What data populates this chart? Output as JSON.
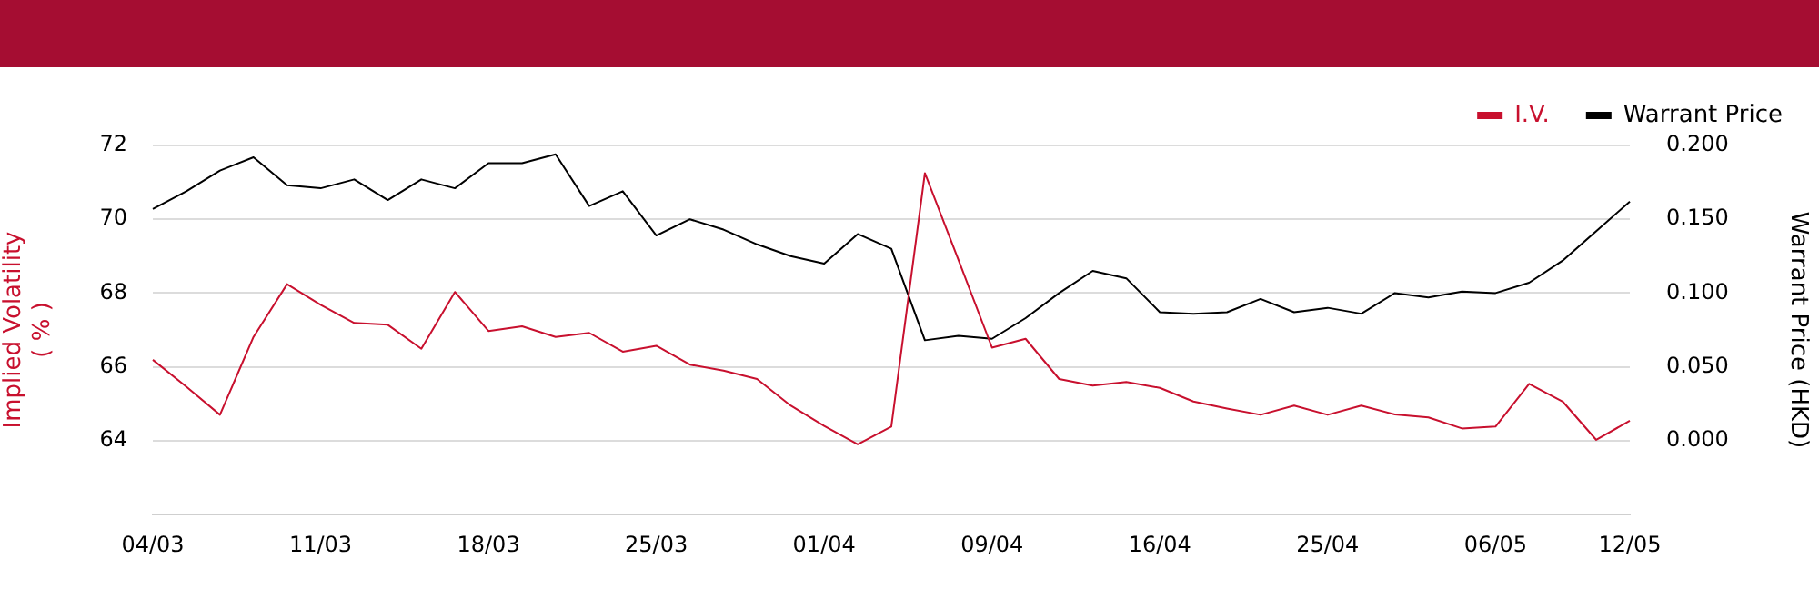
{
  "chart_data": {
    "type": "line",
    "xlabel": null,
    "ylabel": "Implied Volatility\n( % )",
    "y2label": "Warrant Price (HKD)",
    "categories": [
      "04/03",
      null,
      null,
      null,
      null,
      "11/03",
      null,
      null,
      null,
      null,
      "18/03",
      null,
      null,
      null,
      null,
      "25/03",
      null,
      null,
      null,
      null,
      "01/04",
      null,
      null,
      null,
      null,
      "09/04",
      null,
      null,
      null,
      null,
      "16/04",
      null,
      null,
      null,
      null,
      "25/04",
      null,
      null,
      null,
      null,
      "06/05",
      null,
      null,
      null,
      "12/05"
    ],
    "series": [
      {
        "name": "I.V.",
        "color": "#c8102e",
        "values": [
          66.19,
          65.46,
          64.7,
          66.81,
          68.24,
          67.68,
          67.19,
          67.14,
          66.49,
          68.03,
          66.97,
          67.1,
          66.81,
          66.92,
          66.41,
          66.57,
          66.06,
          65.9,
          65.67,
          64.95,
          64.4,
          63.9,
          64.38,
          71.25,
          68.9,
          66.52,
          66.76,
          65.67,
          65.49,
          65.59,
          65.43,
          65.06,
          64.87,
          64.7,
          64.95,
          64.7,
          64.95,
          64.71,
          64.63,
          64.33,
          64.38,
          65.54,
          65.06,
          64.02,
          64.54
        ]
      },
      {
        "name": "Warrant Price",
        "color": "#000000",
        "axis": "y2",
        "values": [
          0.157,
          0.169,
          0.183,
          0.192,
          0.173,
          0.171,
          0.177,
          0.163,
          0.177,
          0.171,
          0.188,
          0.188,
          0.194,
          0.159,
          0.169,
          0.139,
          0.15,
          0.143,
          0.133,
          0.125,
          0.12,
          0.14,
          0.13,
          0.068,
          0.071,
          0.069,
          0.083,
          0.1,
          0.115,
          0.11,
          0.087,
          0.086,
          0.087,
          0.096,
          0.087,
          0.09,
          0.086,
          0.1,
          0.097,
          0.101,
          0.1,
          0.107,
          0.122,
          0.142,
          0.162
        ]
      }
    ],
    "ylim": [
      62,
      72
    ],
    "yticks": [
      64,
      66,
      68,
      70,
      72
    ],
    "y2lim": [
      -0.05,
      0.2
    ],
    "y2ticks": [
      {
        "value": 0,
        "label": "0.000"
      },
      {
        "value": 0.05,
        "label": "0.050"
      },
      {
        "value": 0.1,
        "label": "0.100"
      },
      {
        "value": 0.15,
        "label": "0.150"
      },
      {
        "value": 0.2,
        "label": "0.200"
      }
    ],
    "grid": "y",
    "legend": "top right",
    "marker": "none",
    "line_style": "solid"
  }
}
